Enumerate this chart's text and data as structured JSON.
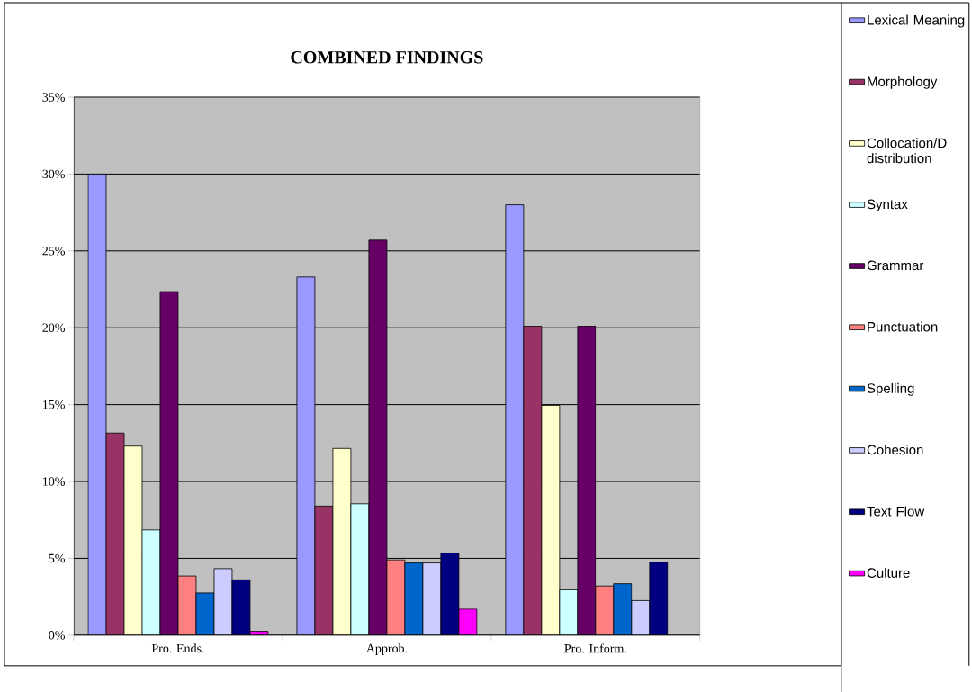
{
  "chart_data": {
    "type": "bar",
    "title": "COMBINED FINDINGS",
    "categories": [
      "Pro. Ends.",
      "Approb.",
      "Pro. Inform."
    ],
    "series": [
      {
        "name": "Lexical Meaning",
        "color": "#9999ff",
        "values": [
          30.0,
          23.3,
          28.0
        ]
      },
      {
        "name": "Morphology",
        "color": "#993366",
        "values": [
          13.15,
          8.4,
          20.1
        ]
      },
      {
        "name": "Collocation/D distribution",
        "color": "#ffffcc",
        "values": [
          12.3,
          12.15,
          14.95
        ]
      },
      {
        "name": "Syntax",
        "color": "#ccffff",
        "values": [
          6.85,
          8.55,
          2.95
        ]
      },
      {
        "name": "Grammar",
        "color": "#660066",
        "values": [
          22.35,
          25.7,
          20.1
        ]
      },
      {
        "name": "Punctuation",
        "color": "#ff8080",
        "values": [
          3.85,
          4.9,
          3.2
        ]
      },
      {
        "name": "Spelling",
        "color": "#0066cc",
        "values": [
          2.75,
          4.7,
          3.35
        ]
      },
      {
        "name": "Cohesion",
        "color": "#ccccff",
        "values": [
          4.33,
          4.7,
          2.25
        ]
      },
      {
        "name": "Text Flow",
        "color": "#000080",
        "values": [
          3.6,
          5.35,
          4.75
        ]
      },
      {
        "name": "Culture",
        "color": "#ff00ff",
        "values": [
          0.25,
          1.7,
          null
        ]
      }
    ],
    "ylim": [
      0,
      35
    ],
    "yticks": [
      {
        "value": 0,
        "label": "0%"
      },
      {
        "value": 5,
        "label": "5%"
      },
      {
        "value": 10,
        "label": "10%"
      },
      {
        "value": 15,
        "label": "15%"
      },
      {
        "value": 20,
        "label": "20%"
      },
      {
        "value": 25,
        "label": "25%"
      },
      {
        "value": 30,
        "label": "30%"
      },
      {
        "value": 35,
        "label": "35%"
      }
    ],
    "grid": "y",
    "legend": "right"
  }
}
